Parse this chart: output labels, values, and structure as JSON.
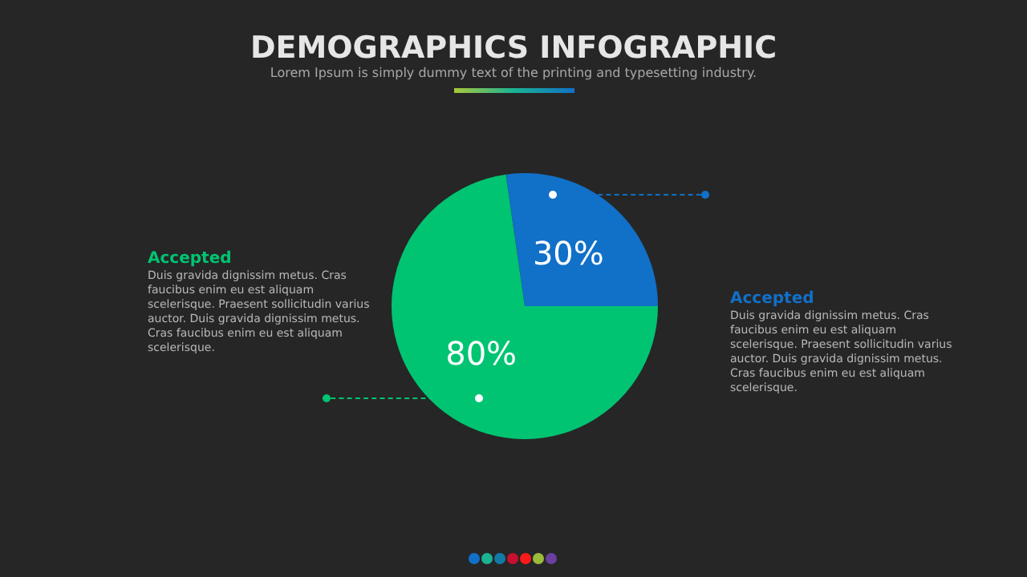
{
  "chart_data": {
    "type": "pie",
    "title": "DEMOGRAPHICS INFOGRAPHIC",
    "subtitle": "Lorem Ipsum is simply dummy text of the printing and typesetting industry.",
    "categories": [
      null,
      null
    ],
    "values": [
      30,
      80
    ],
    "colors": [
      "#1170c8",
      "#00c472"
    ],
    "value_labels": [
      "30%",
      "80%"
    ],
    "annotations": [
      "Accepted",
      "Duis gravida dignissim metus. Cras faucibus enim eu est aliquam scelerisque. Praesent sollicitudin varius auctor. Duis gravida dignissim metus. Cras faucibus enim eu est aliquam scelerisque.",
      "Accepted",
      "Duis gravida dignissim metus. Cras faucibus enim eu est aliquam scelerisque. Praesent sollicitudin varius auctor. Duis gravida dignissim metus. Cras faucibus enim eu est aliquam scelerisque."
    ]
  }
}
